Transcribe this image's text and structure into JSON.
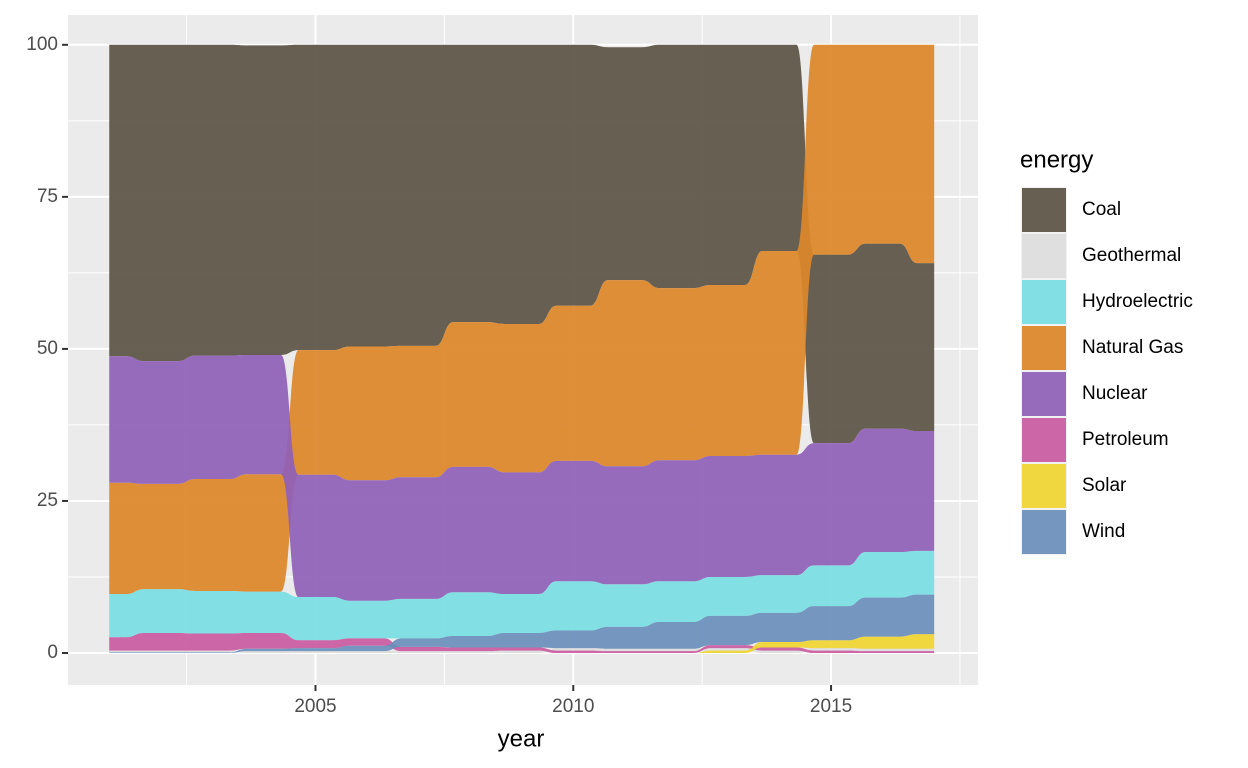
{
  "chart_data": {
    "type": "ranked-stream",
    "x_label": "year",
    "legend_title": "energy",
    "x": [
      2001,
      2002,
      2003,
      2004,
      2005,
      2006,
      2007,
      2008,
      2009,
      2010,
      2011,
      2012,
      2013,
      2014,
      2015,
      2016,
      2017
    ],
    "series": [
      {
        "name": "Coal",
        "color": "#5c5546",
        "values": [
          51.2,
          52,
          51.1,
          50.9,
          50.2,
          49.6,
          49.5,
          45.6,
          45.9,
          42.9,
          38.3,
          40.0,
          39.5,
          33.9,
          31.0,
          30.4,
          27.6
        ]
      },
      {
        "name": "Geothermal",
        "color": "#dedede",
        "values": [
          0.3,
          0.3,
          0.3,
          0.3,
          0.3,
          0.3,
          0.3,
          0.3,
          0.4,
          0.4,
          0.4,
          0.4,
          0.4,
          0.4,
          0.4,
          0.4,
          0.4
        ]
      },
      {
        "name": "Hydroelectric",
        "color": "#7adfe3",
        "values": [
          7.1,
          7.2,
          7.0,
          6.8,
          7.1,
          6.2,
          6.5,
          7.2,
          6.4,
          8.1,
          7.0,
          6.7,
          6.4,
          6.2,
          6.7,
          7.5,
          7.2
        ]
      },
      {
        "name": "Natural Gas",
        "color": "#dd8729",
        "values": [
          18.3,
          17.3,
          18.4,
          19.3,
          20.5,
          22.0,
          21.6,
          23.8,
          24.4,
          25.5,
          30.6,
          28.3,
          28.1,
          33.5,
          34.5,
          32.7,
          35.9
        ]
      },
      {
        "name": "Nuclear",
        "color": "#9061b7",
        "values": [
          20.8,
          20.2,
          20.3,
          19.6,
          20.1,
          19.8,
          20.0,
          20.6,
          20.0,
          19.8,
          19.4,
          19.9,
          19.9,
          19.8,
          20.1,
          20.3,
          19.7
        ]
      },
      {
        "name": "Petroleum",
        "color": "#c95ba1",
        "values": [
          2.2,
          2.9,
          2.8,
          2.6,
          1.3,
          1.2,
          0.7,
          0.6,
          0.5,
          0.4,
          0.3,
          0.3,
          0.5,
          0.5,
          0.4,
          0.3,
          0.3
        ]
      },
      {
        "name": "Solar",
        "color": "#f0d431",
        "values": [
          0,
          0,
          0,
          0,
          0,
          0,
          0,
          0,
          0,
          0,
          0,
          0,
          0.4,
          0.9,
          1.3,
          2.0,
          2.4
        ]
      },
      {
        "name": "Wind",
        "color": "#6a8fbb",
        "values": [
          0.1,
          0.1,
          0.1,
          0.4,
          0.5,
          0.9,
          1.4,
          1.9,
          2.4,
          2.9,
          3.6,
          4.4,
          4.8,
          4.8,
          5.6,
          6.4,
          6.5
        ]
      }
    ],
    "xlim": [
      2000.2,
      2017.85
    ],
    "xticks": [
      2005,
      2010,
      2015
    ],
    "ylim": [
      -5.26,
      104.9
    ],
    "yticks": [
      0,
      25,
      50,
      75,
      100
    ],
    "grid": true
  }
}
